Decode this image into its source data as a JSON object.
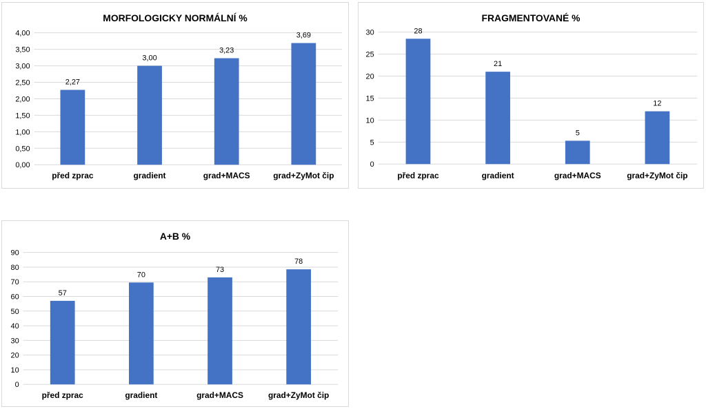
{
  "chart_data": [
    {
      "type": "bar",
      "title": "MORFOLOGICKY NORMÁLNÍ %",
      "categories": [
        "před zprac",
        "gradient",
        "grad+MACS",
        "grad+ZyMot čip"
      ],
      "values": [
        2.27,
        3.0,
        3.23,
        3.69
      ],
      "data_labels": [
        "2,27",
        "3,00",
        "3,23",
        "3,69"
      ],
      "ylim": [
        0,
        4
      ],
      "yticks": [
        0,
        0.5,
        1,
        1.5,
        2,
        2.5,
        3,
        3.5,
        4
      ],
      "ytick_labels": [
        "0,00",
        "0,50",
        "1,00",
        "1,50",
        "2,00",
        "2,50",
        "3,00",
        "3,50",
        "4,00"
      ],
      "grid": true,
      "bar_color": "#4472c4"
    },
    {
      "type": "bar",
      "title": "FRAGMENTOVANÉ %",
      "categories": [
        "před zprac",
        "gradient",
        "grad+MACS",
        "grad+ZyMot čip"
      ],
      "values": [
        28.5,
        21,
        5.3,
        12
      ],
      "data_labels": [
        "28",
        "21",
        "5",
        "12"
      ],
      "ylim": [
        0,
        30
      ],
      "yticks": [
        0,
        5,
        10,
        15,
        20,
        25,
        30
      ],
      "ytick_labels": [
        "0",
        "5",
        "10",
        "15",
        "20",
        "25",
        "30"
      ],
      "grid": true,
      "bar_color": "#4472c4"
    },
    {
      "type": "bar",
      "title": "A+B %",
      "categories": [
        "před zprac",
        "gradient",
        "grad+MACS",
        "grad+ZyMot čip"
      ],
      "values": [
        57,
        69.5,
        73,
        78.5
      ],
      "data_labels": [
        "57",
        "70",
        "73",
        "78"
      ],
      "ylim": [
        0,
        90
      ],
      "yticks": [
        0,
        10,
        20,
        30,
        40,
        50,
        60,
        70,
        80,
        90
      ],
      "ytick_labels": [
        "0",
        "10",
        "20",
        "30",
        "40",
        "50",
        "60",
        "70",
        "80",
        "90"
      ],
      "grid": true,
      "bar_color": "#4472c4"
    }
  ]
}
